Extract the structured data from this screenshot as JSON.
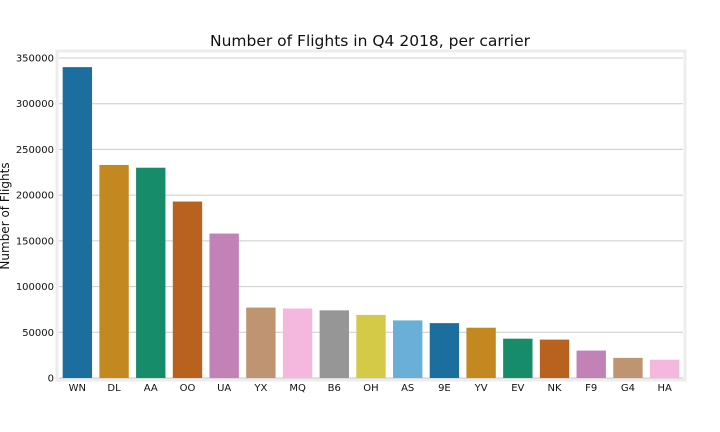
{
  "chart_data": {
    "type": "bar",
    "title": "Number of Flights in Q4 2018, per carrier",
    "xlabel": "",
    "ylabel": "Number of Flights",
    "ylim": [
      0,
      350000
    ],
    "yticks": [
      0,
      50000,
      100000,
      150000,
      200000,
      250000,
      300000,
      350000
    ],
    "ytick_labels": [
      "0",
      "50000",
      "100000",
      "150000",
      "200000",
      "250000",
      "300000",
      "350000"
    ],
    "grid": "horizontal",
    "categories": [
      "WN",
      "DL",
      "AA",
      "OO",
      "UA",
      "YX",
      "MQ",
      "B6",
      "OH",
      "AS",
      "9E",
      "YV",
      "EV",
      "NK",
      "F9",
      "G4",
      "HA"
    ],
    "values": [
      340000,
      233000,
      230000,
      193000,
      158000,
      77000,
      76000,
      74000,
      69000,
      63000,
      60000,
      55000,
      43000,
      42000,
      30000,
      22000,
      20000
    ],
    "colors": [
      "#1b6e9e",
      "#c48820",
      "#168c6b",
      "#b9621f",
      "#c282b7",
      "#bf9571",
      "#f4b8df",
      "#969696",
      "#d5ca48",
      "#6aafd8",
      "#1b6e9e",
      "#c48820",
      "#168c6b",
      "#b9621f",
      "#c282b7",
      "#bf9571",
      "#f4b8df"
    ]
  }
}
